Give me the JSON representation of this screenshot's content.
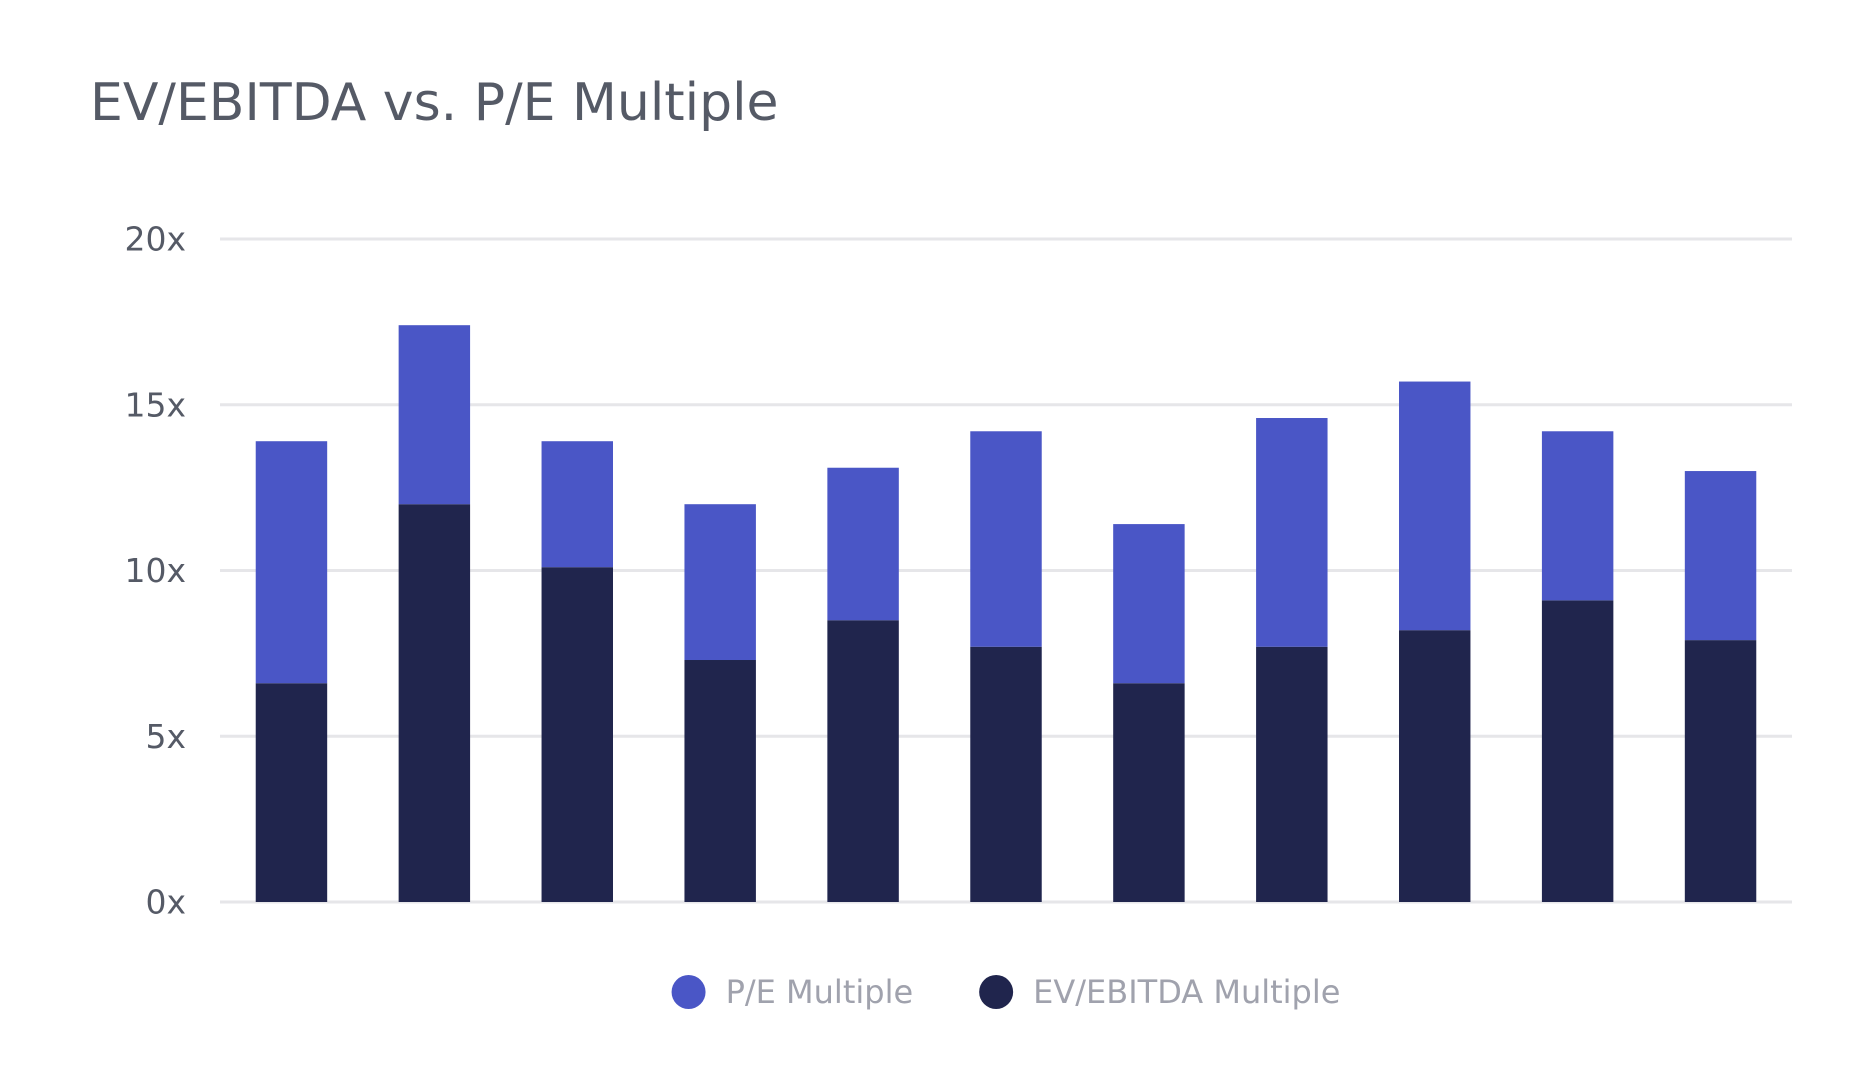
{
  "chart_data": {
    "type": "stacked-bar",
    "title": "EV/EBITDA vs. P/E Multiple",
    "categories": [
      null,
      null,
      null,
      null,
      null,
      null,
      null,
      null,
      null,
      null,
      null
    ],
    "series": [
      {
        "name": "P/E Multiple",
        "color": "#4a56c6",
        "values": [
          7.3,
          5.4,
          3.8,
          4.7,
          4.6,
          6.5,
          4.8,
          6.9,
          7.5,
          5.1,
          5.1
        ]
      },
      {
        "name": "EV/EBITDA Multiple",
        "color": "#20254d",
        "values": [
          6.6,
          12,
          10.1,
          7.3,
          8.5,
          7.7,
          6.6,
          7.7,
          8.2,
          9.1,
          7.9
        ]
      }
    ],
    "ylim": [
      0,
      20
    ],
    "yticks": [
      {
        "value": 0,
        "label": "0x"
      },
      {
        "value": 5,
        "label": "5x"
      },
      {
        "value": 10,
        "label": "10x"
      },
      {
        "value": 15,
        "label": "15x"
      },
      {
        "value": 20,
        "label": "20x"
      }
    ],
    "grid": true,
    "legend": "bottom"
  }
}
